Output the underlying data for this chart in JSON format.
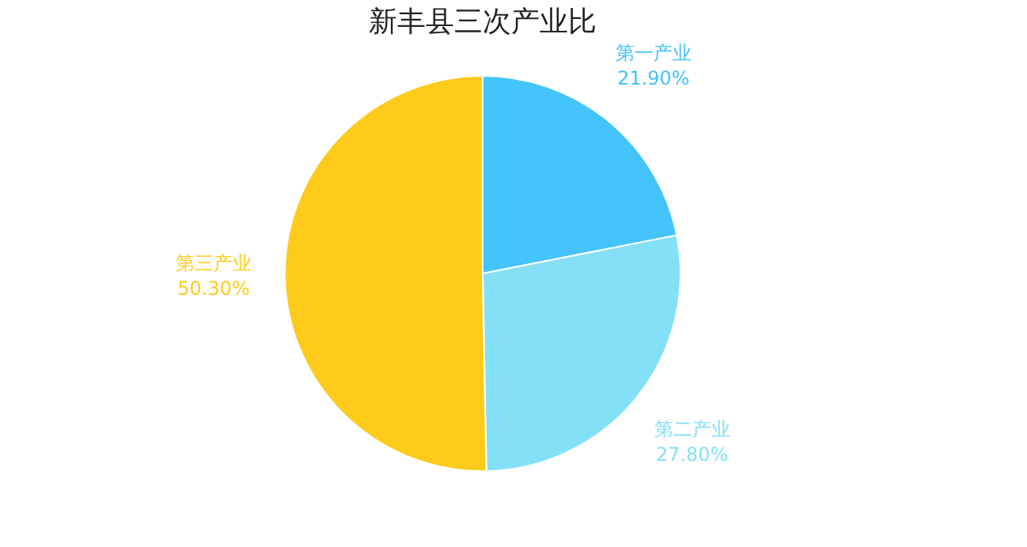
{
  "chart_data": {
    "type": "pie",
    "title": "新丰县三次产业比",
    "categories": [
      "第一产业",
      "第二产业",
      "第三产业"
    ],
    "values": [
      21.9,
      27.8,
      50.3
    ],
    "value_labels": [
      "21.90%",
      "27.80%",
      "50.30%"
    ],
    "colors": [
      "#45c3fb",
      "#84e0f7",
      "#fecb1b"
    ],
    "legend": false
  }
}
